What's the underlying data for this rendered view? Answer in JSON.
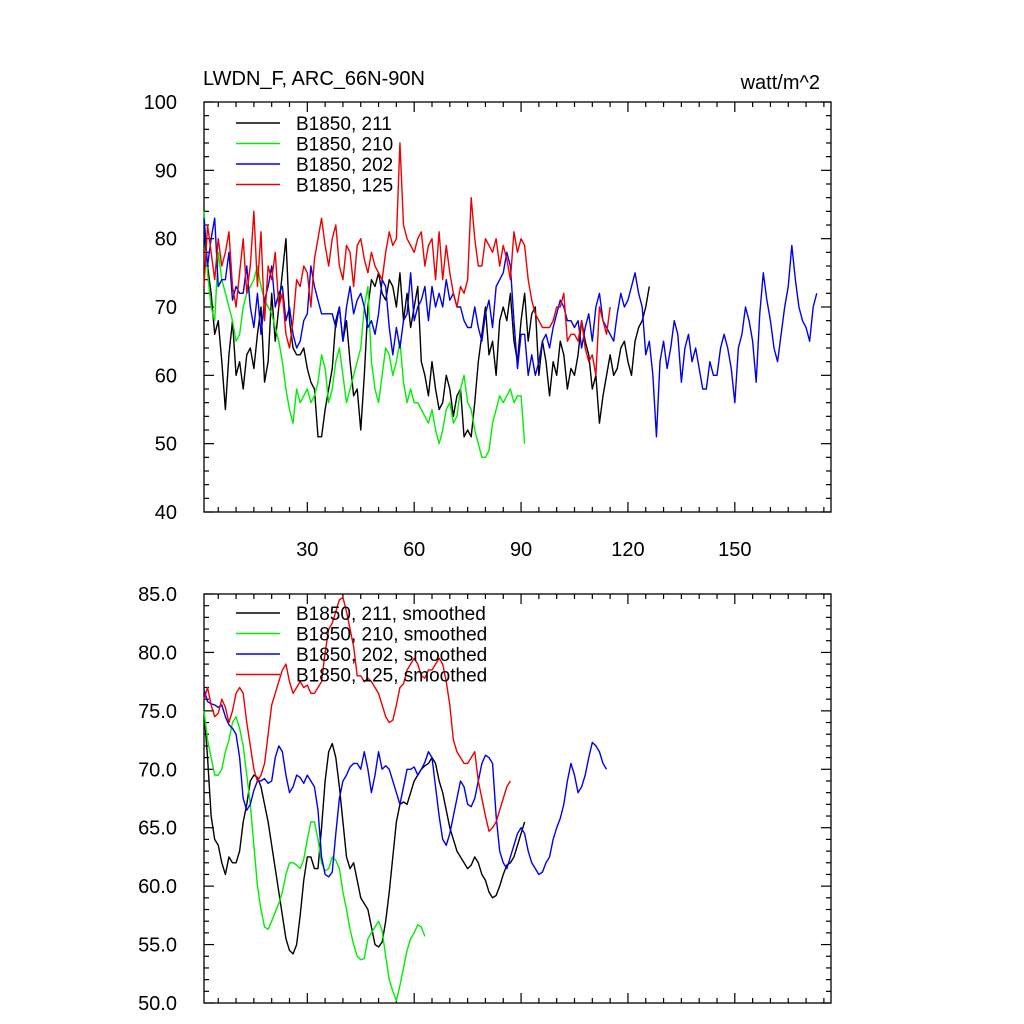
{
  "chart_data": [
    {
      "type": "line",
      "title": "LWDN_F, ARC_66N-90N",
      "units": "watt/m^2",
      "xlim": [
        1,
        177
      ],
      "ylim": [
        40,
        100
      ],
      "x_ticks": [
        30,
        60,
        90,
        120,
        150
      ],
      "y_ticks": [
        40,
        50,
        60,
        70,
        80,
        90,
        100
      ],
      "legend_position": "top-left",
      "series": [
        {
          "name": "B1850, 211",
          "color": "#000000",
          "values": [
            81,
            76,
            72,
            66,
            68,
            62,
            55,
            63,
            68,
            60,
            62,
            58,
            63,
            64,
            61,
            66,
            70,
            59,
            62,
            72,
            65,
            70,
            75,
            80,
            68,
            64,
            63,
            63,
            64,
            61,
            59,
            58,
            51,
            51,
            55,
            58,
            61,
            68,
            70,
            65,
            68,
            62,
            57,
            58,
            52,
            60,
            70,
            74,
            73,
            75,
            72,
            71,
            74,
            73,
            70,
            75,
            68,
            72,
            67,
            70,
            73,
            62,
            60,
            57,
            62,
            58,
            55,
            56,
            60,
            58,
            54,
            57,
            58,
            51,
            52,
            51,
            56,
            62,
            66,
            70,
            63,
            65,
            60,
            68,
            70,
            68,
            72,
            65,
            62,
            68,
            72,
            65,
            69,
            70,
            60,
            65,
            62,
            57,
            62,
            60,
            65,
            63,
            58,
            61,
            60,
            63,
            68,
            65,
            63,
            58,
            60,
            53,
            57,
            60,
            63,
            60,
            61,
            64,
            65,
            62,
            60,
            65,
            67,
            68,
            70,
            73
          ]
        },
        {
          "name": "B1850, 210",
          "color": "#00ee00",
          "values": [
            84,
            75,
            70,
            68,
            78,
            74,
            72,
            70,
            68,
            65,
            66,
            70,
            72,
            73,
            74,
            76,
            73,
            71,
            70,
            69,
            67,
            65,
            62,
            58,
            55,
            53,
            58,
            56,
            57,
            58,
            56,
            57,
            59,
            63,
            61,
            56,
            58,
            62,
            64,
            60,
            56,
            58,
            60,
            62,
            64,
            70,
            73,
            62,
            58,
            56,
            60,
            64,
            63,
            60,
            62,
            65,
            59,
            56,
            58,
            56,
            56,
            55,
            54,
            53,
            55,
            52,
            50,
            52,
            55,
            56,
            53,
            54,
            58,
            60,
            56,
            55,
            52,
            50,
            48,
            48,
            49,
            53,
            55,
            57,
            56,
            57,
            58,
            56,
            57,
            57,
            50
          ]
        },
        {
          "name": "B1850, 202",
          "color": "#0000ee",
          "values": [
            83,
            76,
            80,
            83,
            73,
            74,
            74,
            78,
            71,
            73,
            72,
            72,
            76,
            70,
            67,
            72,
            66,
            71,
            73,
            76,
            70,
            72,
            73,
            68,
            70,
            66,
            64,
            65,
            68,
            69,
            76,
            73,
            71,
            69,
            69,
            69,
            69,
            67,
            70,
            65,
            70,
            73,
            69,
            71,
            72,
            70,
            67,
            68,
            66,
            69,
            74,
            73,
            67,
            63,
            67,
            64,
            68,
            69,
            75,
            68,
            70,
            71,
            73,
            68,
            73,
            70,
            72,
            70,
            74,
            71,
            72,
            70,
            70,
            68,
            67,
            67,
            70,
            67,
            65,
            69,
            71,
            67,
            73,
            74,
            75,
            78,
            76,
            68,
            61,
            66,
            66,
            60,
            63,
            60,
            62,
            65,
            66,
            64,
            67,
            69,
            71,
            70,
            68,
            68,
            67,
            68,
            64,
            67,
            69,
            65,
            70,
            72,
            68,
            67,
            66,
            65,
            69,
            72,
            70,
            71,
            73,
            75,
            72,
            70,
            63,
            65,
            60,
            51,
            62,
            65,
            61,
            64,
            68,
            66,
            59,
            64,
            66,
            62,
            64,
            61,
            58,
            58,
            62,
            60,
            60,
            64,
            66,
            64,
            61,
            56,
            64,
            66,
            70,
            68,
            65,
            59,
            69,
            75,
            71,
            68,
            64,
            62,
            66,
            70,
            73,
            79,
            74,
            70,
            68,
            67,
            65,
            70,
            72
          ]
        },
        {
          "name": "B1850, 125",
          "color": "#ee0000",
          "values": [
            73,
            82,
            78,
            74,
            80,
            76,
            78,
            81,
            73,
            70,
            75,
            80,
            72,
            76,
            84,
            73,
            81,
            68,
            76,
            74,
            78,
            70,
            72,
            66,
            64,
            68,
            74,
            73,
            76,
            75,
            70,
            77,
            80,
            83,
            79,
            76,
            80,
            82,
            76,
            74,
            79,
            78,
            73,
            79,
            80,
            77,
            75,
            78,
            76,
            75,
            74,
            78,
            81,
            79,
            80,
            94,
            82,
            80,
            79,
            78,
            80,
            81,
            76,
            79,
            80,
            74,
            81,
            74,
            79,
            75,
            72,
            70,
            73,
            72,
            74,
            86,
            80,
            76,
            76,
            80,
            79,
            78,
            80,
            76,
            79,
            77,
            74,
            81,
            78,
            80,
            79,
            74,
            71,
            69,
            68,
            67,
            67,
            67,
            68,
            70,
            70,
            72,
            65,
            66,
            66,
            65,
            68,
            64,
            62,
            63,
            60,
            70,
            68,
            66,
            70
          ]
        }
      ]
    },
    {
      "type": "line",
      "title": "",
      "xlim": [
        1,
        177
      ],
      "ylim": [
        50,
        85
      ],
      "y_ticks": [
        "50.0",
        "55.0",
        "60.0",
        "65.0",
        "70.0",
        "75.0",
        "80.0",
        "85.0"
      ],
      "legend_position": "top-left",
      "series": [
        {
          "name": "B1850, 211, smoothed",
          "color": "#000000",
          "values": [
            75,
            71,
            66,
            64,
            63.5,
            62,
            61,
            62.5,
            62,
            62,
            63,
            65.5,
            67,
            69,
            69.5,
            69.3,
            68.5,
            67,
            65.5,
            63.5,
            61.5,
            59.5,
            57.5,
            55.5,
            54.5,
            54.2,
            55,
            57.5,
            60.5,
            62.5,
            62.5,
            61.5,
            61.5,
            65,
            69,
            71.5,
            72.2,
            71,
            68.5,
            65.5,
            62.5,
            61.5,
            62,
            60.5,
            59,
            58.5,
            58,
            56.5,
            55,
            54.8,
            55.2,
            57,
            59.5,
            62.5,
            65.5,
            67,
            67.2,
            67,
            68,
            69,
            69.5,
            70,
            70.3,
            70.5,
            71,
            70.5,
            69,
            68,
            66.5,
            65,
            64,
            63,
            62.5,
            62,
            61.5,
            61.8,
            62.5,
            62,
            61,
            60.5,
            59.5,
            59,
            59.2,
            60,
            61,
            61.8,
            62,
            62.5,
            63.5,
            64.5,
            65.5
          ]
        },
        {
          "name": "B1850, 210, smoothed",
          "color": "#00ee00",
          "values": [
            75,
            72.5,
            71,
            69.5,
            69.5,
            70,
            71.5,
            72.5,
            74,
            74.5,
            73.5,
            72,
            69.5,
            67,
            63.5,
            60,
            58,
            56.5,
            56.3,
            57,
            57.8,
            58.5,
            59.5,
            61,
            62,
            62,
            61.8,
            61.5,
            62.3,
            64,
            65.5,
            65.5,
            64,
            62,
            61.3,
            61.5,
            62.5,
            62.2,
            61.5,
            59.5,
            58,
            56.3,
            55,
            54,
            53.7,
            53.8,
            55.5,
            56,
            56.5,
            57,
            56.2,
            54,
            52,
            51,
            50.2,
            51.5,
            53,
            54.5,
            55.5,
            56,
            56.7,
            56.5,
            55.7
          ]
        },
        {
          "name": "B1850, 202, smoothed",
          "color": "#0000ee",
          "values": [
            76.8,
            75.8,
            75.6,
            75.5,
            75.3,
            75.5,
            74.5,
            73.8,
            73.5,
            73,
            71,
            67.5,
            66.5,
            67,
            68.2,
            69,
            69,
            69.2,
            68.8,
            69,
            71,
            72,
            71.5,
            69.5,
            68,
            68.5,
            69.5,
            69.3,
            68.8,
            69.5,
            69,
            68.5,
            66.5,
            62.5,
            61,
            60.8,
            61.2,
            64.5,
            67.5,
            69,
            69.5,
            70.2,
            70.5,
            70.5,
            70,
            71.5,
            70,
            68,
            69.5,
            71.5,
            70,
            70.3,
            70,
            69,
            68,
            67,
            68.5,
            70,
            70,
            70.2,
            69.5,
            70,
            70.6,
            71.5,
            71,
            68.5,
            66,
            64,
            63.5,
            64.5,
            66,
            67.5,
            69,
            68.5,
            67,
            66.8,
            67.5,
            69,
            70.5,
            71.2,
            71,
            70.5,
            66,
            63,
            62,
            61.5,
            62.5,
            63.5,
            64.5,
            65,
            64.5,
            63,
            62,
            61.5,
            61,
            61.2,
            62,
            62.5,
            64,
            65,
            65.8,
            67,
            69,
            70.5,
            69.5,
            68,
            68.5,
            69.5,
            71,
            72.3,
            72,
            71.5,
            70.5,
            70
          ]
        },
        {
          "name": "B1850, 125, smoothed",
          "color": "#ee0000",
          "values": [
            76,
            77,
            75.5,
            74.5,
            74.8,
            76,
            75.3,
            74,
            75,
            76.5,
            77,
            76.5,
            74,
            72,
            70,
            69,
            69.5,
            70.5,
            73,
            75.5,
            76.5,
            77.5,
            78.5,
            79,
            77.5,
            76.5,
            77,
            77.5,
            77,
            77.2,
            76.5,
            76.5,
            77,
            77.5,
            80,
            82,
            82.5,
            83.5,
            84.5,
            84.7,
            83.5,
            82,
            80.5,
            78,
            78,
            77.5,
            77.8,
            77.5,
            77,
            76.5,
            75.5,
            74.5,
            74,
            74.2,
            75.5,
            77,
            77.3,
            78.5,
            79,
            79.5,
            79,
            78,
            77.8,
            78.5,
            78.5,
            79,
            79.5,
            79,
            77.5,
            75.5,
            72.5,
            71.5,
            71,
            70.5,
            70.5,
            71,
            71.5,
            69,
            67.5,
            66,
            64.7,
            65,
            65.5,
            66.5,
            67.5,
            68.5,
            69
          ]
        }
      ]
    }
  ]
}
